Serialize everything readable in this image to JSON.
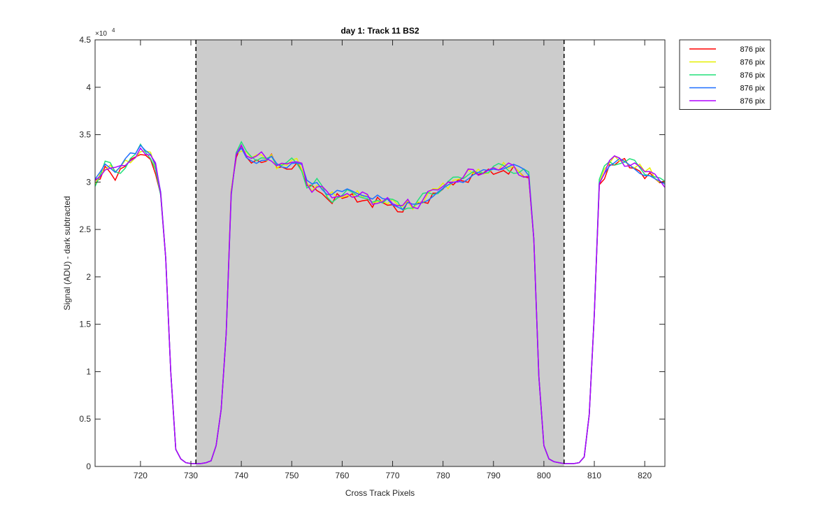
{
  "chart_data": {
    "type": "line",
    "title": "day 1: Track 11  BS2",
    "xlabel": "Cross Track Pixels",
    "ylabel": "Signal (ADU) - dark subtracted",
    "y_exponent_label": "×10",
    "y_exponent": "4",
    "xlim": [
      711,
      824
    ],
    "ylim": [
      0,
      4.5
    ],
    "y_scale": 10000,
    "x_ticks": [
      720,
      730,
      740,
      750,
      760,
      770,
      780,
      790,
      800,
      810,
      820
    ],
    "y_ticks": [
      0,
      0.5,
      1,
      1.5,
      2,
      2.5,
      3,
      3.5,
      4,
      4.5
    ],
    "y_tick_labels": [
      "0",
      "0.5",
      "1",
      "1.5",
      "2",
      "2.5",
      "3",
      "3.5",
      "4",
      "4.5"
    ],
    "shaded_region": {
      "x_start": 731,
      "x_end": 804,
      "color": "#cccccc"
    },
    "vlines": [
      731,
      804
    ],
    "grid": false,
    "legend_position": "outside-top-right",
    "base_profile": {
      "x_start": 711,
      "values": [
        3.0,
        3.08,
        3.18,
        3.15,
        3.1,
        3.14,
        3.2,
        3.25,
        3.25,
        3.36,
        3.32,
        3.28,
        3.15,
        2.85,
        2.2,
        1.0,
        0.18,
        0.08,
        0.04,
        0.03,
        0.03,
        0.03,
        0.04,
        0.06,
        0.22,
        0.6,
        1.4,
        2.9,
        3.3,
        3.38,
        3.3,
        3.28,
        3.25,
        3.26,
        3.24,
        3.27,
        3.2,
        3.18,
        3.18,
        3.22,
        3.2,
        3.16,
        2.98,
        2.95,
        2.98,
        2.92,
        2.86,
        2.84,
        2.86,
        2.84,
        2.88,
        2.88,
        2.87,
        2.85,
        2.82,
        2.78,
        2.82,
        2.8,
        2.82,
        2.78,
        2.76,
        2.72,
        2.78,
        2.76,
        2.78,
        2.82,
        2.86,
        2.9,
        2.93,
        2.95,
        2.98,
        3.02,
        3.05,
        3.05,
        3.08,
        3.1,
        3.1,
        3.12,
        3.12,
        3.15,
        3.15,
        3.15,
        3.15,
        3.15,
        3.12,
        3.1,
        3.05,
        2.4,
        0.95,
        0.22,
        0.08,
        0.05,
        0.04,
        0.03,
        0.03,
        0.03,
        0.04,
        0.1,
        0.55,
        1.6,
        3.0,
        3.12,
        3.2,
        3.22,
        3.25,
        3.22,
        3.2,
        3.18,
        3.15,
        3.12,
        3.1,
        3.05,
        3.02,
        3.0
      ]
    },
    "series": [
      {
        "name": "876 pix",
        "color": "#ff0000",
        "offset_seed": 1
      },
      {
        "name": "876 pix",
        "color": "#e6f000",
        "offset_seed": 2
      },
      {
        "name": "876 pix",
        "color": "#22e07a",
        "offset_seed": 3
      },
      {
        "name": "876 pix",
        "color": "#1f6fff",
        "offset_seed": 4
      },
      {
        "name": "876 pix",
        "color": "#b000ff",
        "offset_seed": 5
      }
    ]
  }
}
